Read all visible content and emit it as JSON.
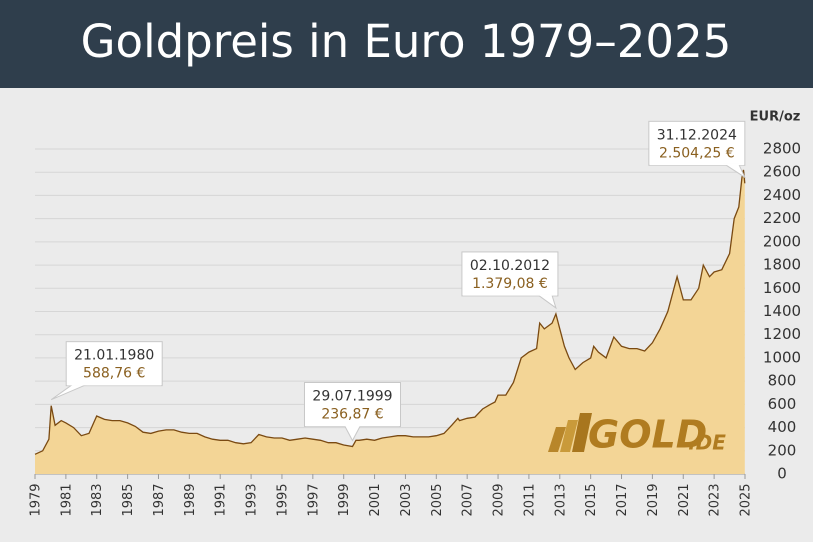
{
  "chart_data": {
    "type": "area",
    "title": "Goldpreis in Euro 1979–2025",
    "y_unit": "EUR/oz",
    "color": "#f3d596",
    "line_color": "#7a4a12",
    "grid": true,
    "xlim": [
      1979,
      2025
    ],
    "xticks": [
      1979,
      1981,
      1983,
      1985,
      1987,
      1989,
      1991,
      1993,
      1995,
      1997,
      1999,
      2001,
      2003,
      2005,
      2007,
      2009,
      2011,
      2013,
      2015,
      2017,
      2019,
      2021,
      2023,
      2025
    ],
    "ylim": [
      0,
      2800
    ],
    "yticks": [
      0,
      200,
      400,
      600,
      800,
      1000,
      1200,
      1400,
      1600,
      1800,
      2000,
      2200,
      2400,
      2600,
      2800
    ],
    "x": [
      1979.0,
      1979.5,
      1979.9,
      1980.05,
      1980.3,
      1980.7,
      1981.0,
      1981.5,
      1982.0,
      1982.5,
      1983.0,
      1983.5,
      1984.0,
      1984.5,
      1985.0,
      1985.5,
      1986.0,
      1986.5,
      1987.0,
      1987.5,
      1988.0,
      1988.5,
      1989.0,
      1989.5,
      1990.0,
      1990.5,
      1991.0,
      1991.5,
      1992.0,
      1992.5,
      1993.0,
      1993.5,
      1994.0,
      1994.5,
      1995.0,
      1995.5,
      1996.0,
      1996.5,
      1997.0,
      1997.5,
      1998.0,
      1998.5,
      1999.0,
      1999.57,
      1999.8,
      2000.0,
      2000.5,
      2001.0,
      2001.5,
      2002.0,
      2002.5,
      2003.0,
      2003.5,
      2004.0,
      2004.5,
      2005.0,
      2005.5,
      2006.0,
      2006.4,
      2006.5,
      2007.0,
      2007.5,
      2008.0,
      2008.5,
      2008.8,
      2009.0,
      2009.5,
      2010.0,
      2010.5,
      2011.0,
      2011.5,
      2011.7,
      2012.0,
      2012.5,
      2012.75,
      2013.0,
      2013.3,
      2013.6,
      2014.0,
      2014.5,
      2015.0,
      2015.2,
      2015.5,
      2016.0,
      2016.5,
      2017.0,
      2017.5,
      2018.0,
      2018.5,
      2019.0,
      2019.5,
      2020.0,
      2020.6,
      2021.0,
      2021.5,
      2022.0,
      2022.3,
      2022.7,
      2023.0,
      2023.5,
      2024.0,
      2024.3,
      2024.6,
      2024.8,
      2024.9,
      2024.99
    ],
    "values": [
      170,
      200,
      300,
      588.76,
      420,
      460,
      440,
      400,
      330,
      350,
      500,
      470,
      460,
      460,
      440,
      410,
      360,
      350,
      370,
      380,
      380,
      360,
      350,
      350,
      320,
      300,
      290,
      290,
      270,
      260,
      270,
      340,
      320,
      310,
      310,
      290,
      300,
      310,
      300,
      290,
      270,
      270,
      250,
      236.87,
      290,
      290,
      300,
      290,
      310,
      320,
      330,
      330,
      320,
      320,
      320,
      330,
      350,
      420,
      480,
      460,
      480,
      490,
      560,
      600,
      620,
      680,
      680,
      790,
      1000,
      1050,
      1080,
      1300,
      1250,
      1300,
      1379.08,
      1250,
      1100,
      1000,
      900,
      960,
      1000,
      1100,
      1050,
      1000,
      1180,
      1100,
      1080,
      1080,
      1060,
      1130,
      1250,
      1400,
      1700,
      1500,
      1500,
      1600,
      1800,
      1700,
      1740,
      1760,
      1900,
      2200,
      2300,
      2550,
      2620,
      2504.25
    ],
    "annotations": [
      {
        "date": "21.01.1980",
        "x": 1980.05,
        "value": 588.76,
        "value_label": "588,76 €"
      },
      {
        "date": "29.07.1999",
        "x": 1999.57,
        "value": 236.87,
        "value_label": "236,87 €"
      },
      {
        "date": "02.10.2012",
        "x": 2012.75,
        "value": 1379.08,
        "value_label": "1.379,08 €"
      },
      {
        "date": "31.12.2024",
        "x": 2024.99,
        "value": 2504.25,
        "value_label": "2.504,25 €"
      }
    ],
    "logo": {
      "text": "GOLD",
      "suffix": ".DE"
    }
  }
}
